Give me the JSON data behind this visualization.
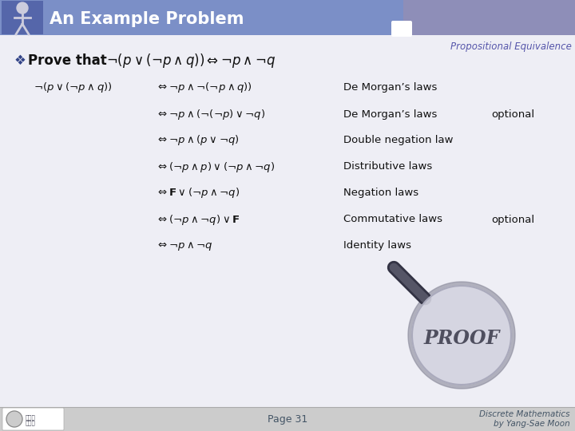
{
  "title": "An Example Problem",
  "subtitle": "Propositional Equivalence",
  "bg_color": "#eeeef5",
  "header_left_color": "#7b8fc7",
  "header_right_color": "#8e8eb8",
  "header_text_color": "#ffffff",
  "subtitle_color": "#5555aa",
  "footer_bg": "#d8d8dc",
  "footer_text_color": "#555566",
  "page_num": "Page 31",
  "footer_right": "Discrete Mathematics\nby Yang-Sae Moon",
  "prove_prefix": "Prove that ",
  "row_formulas": [
    [
      "neg_lhs",
      "iff_1",
      "De Morgan’s laws",
      ""
    ],
    [
      "",
      "iff_2",
      "De Morgan’s laws",
      "optional"
    ],
    [
      "",
      "iff_3",
      "Double negation law",
      ""
    ],
    [
      "",
      "iff_4",
      "Distributive laws",
      ""
    ],
    [
      "",
      "iff_5",
      "Negation laws",
      ""
    ],
    [
      "",
      "iff_6",
      "Commutative laws",
      "optional"
    ],
    [
      "",
      "iff_7",
      "Identity laws",
      ""
    ]
  ]
}
